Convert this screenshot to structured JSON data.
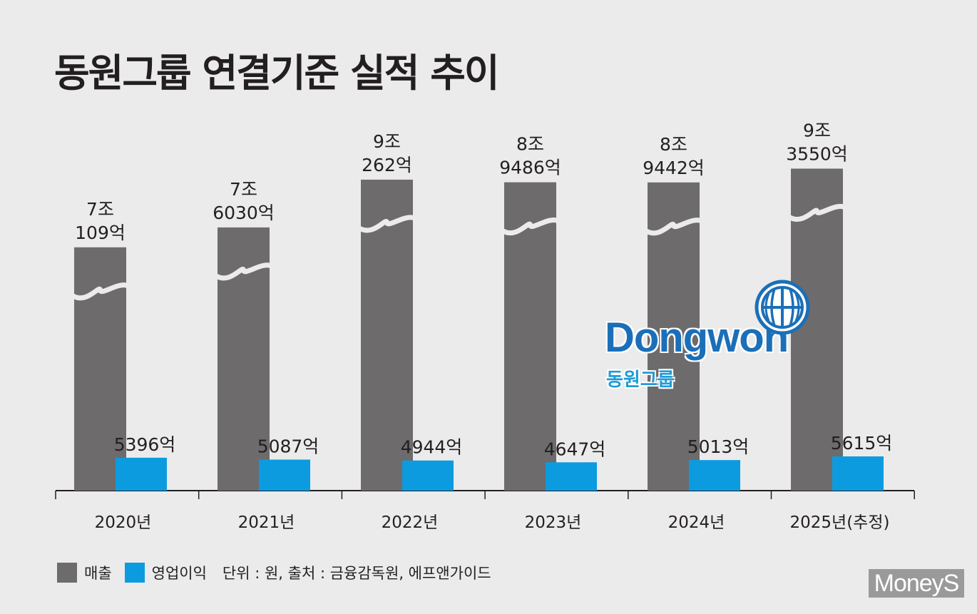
{
  "title": "동원그룹 연결기준 실적 추이",
  "colors": {
    "revenue": "#6d6b6c",
    "operating_profit": "#0d9be0",
    "background": "#ebebeb"
  },
  "legend": {
    "revenue": "매출",
    "operating_profit": "영업이익",
    "note": "단위 : 원, 출처 : 금융감독원, 에프앤가이드"
  },
  "logo": {
    "name_en": "Dongwon",
    "name_kr": "동원그룹",
    "icon": "globe-icon"
  },
  "watermark": "MoneyS",
  "chart_data": {
    "type": "bar",
    "title": "동원그룹 연결기준 실적 추이",
    "categories": [
      "2020년",
      "2021년",
      "2022년",
      "2023년",
      "2024년",
      "2025년(추정)"
    ],
    "unit": "원",
    "axis_break": true,
    "series": [
      {
        "name": "매출",
        "values": [
          70109,
          76030,
          90262,
          89486,
          89442,
          93550
        ],
        "value_unit": "억원",
        "labels": [
          [
            "7조",
            "109억"
          ],
          [
            "7조",
            "6030억"
          ],
          [
            "9조",
            "262억"
          ],
          [
            "8조",
            "9486억"
          ],
          [
            "8조",
            "9442억"
          ],
          [
            "9조",
            "3550억"
          ]
        ]
      },
      {
        "name": "영업이익",
        "values": [
          5396,
          5087,
          4944,
          4647,
          5013,
          5615
        ],
        "value_unit": "억원",
        "labels": [
          "5396억",
          "5087억",
          "4944억",
          "4647억",
          "5013억",
          "5615억"
        ]
      }
    ]
  }
}
